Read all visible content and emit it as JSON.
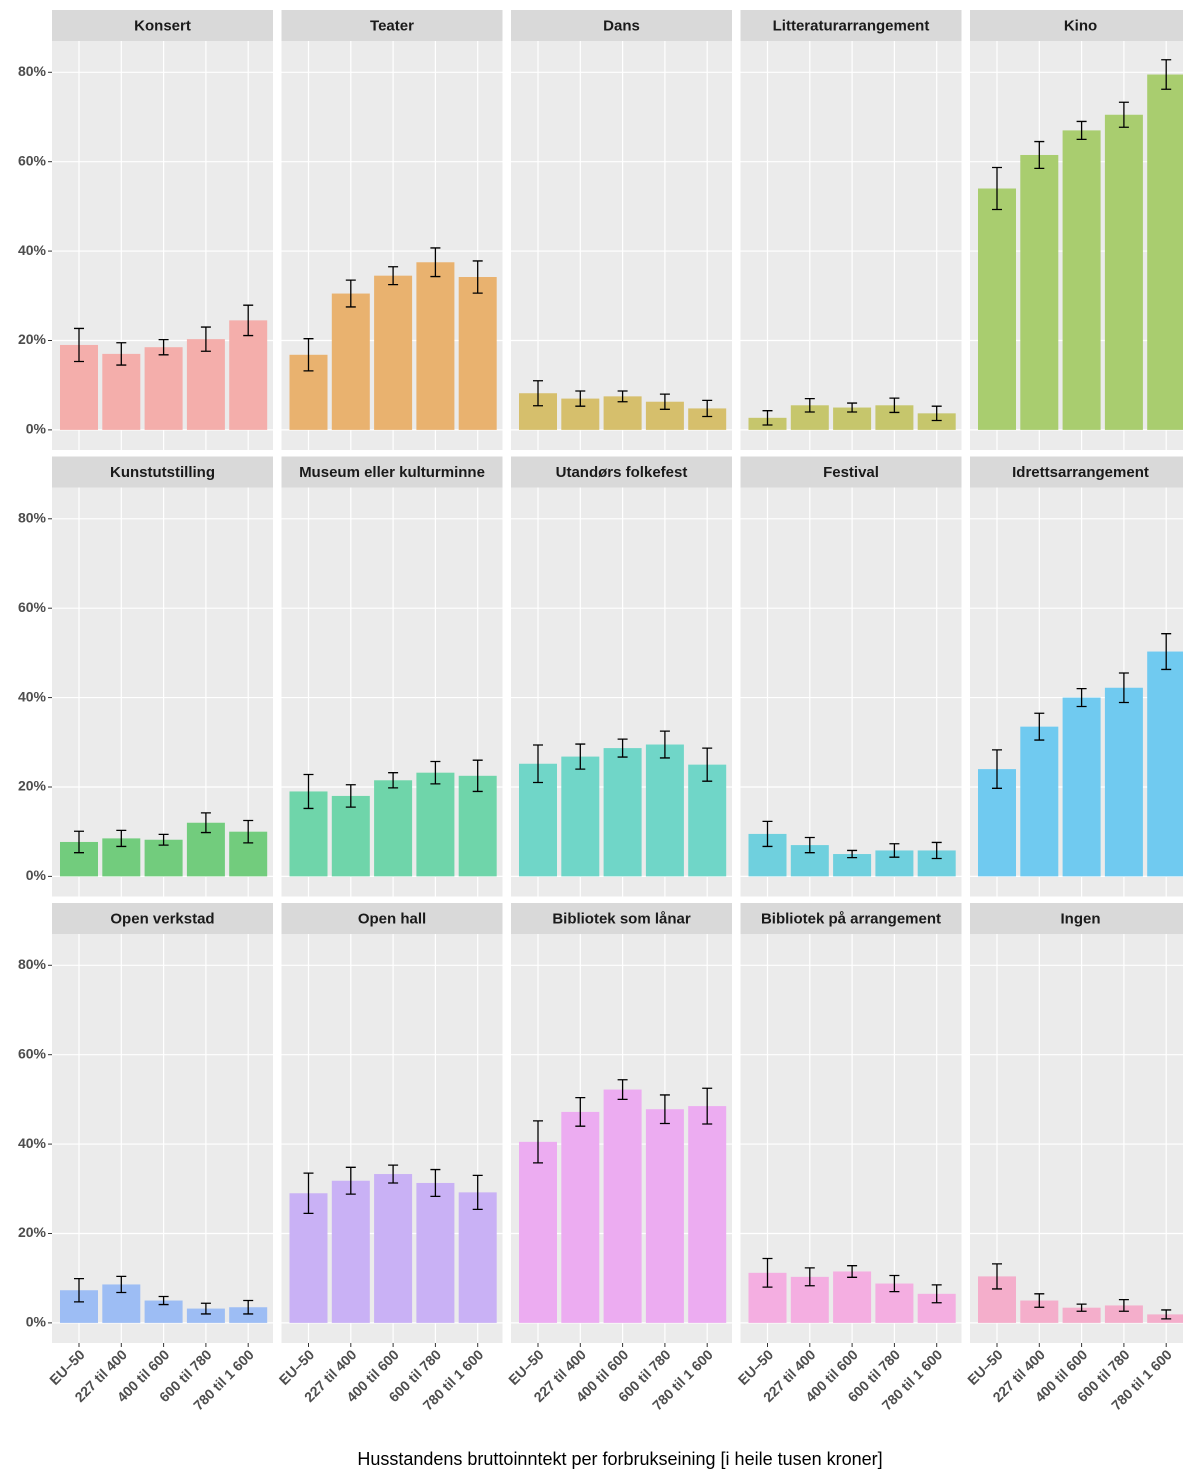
{
  "chart_data": {
    "type": "bar",
    "x_label": "Husstandens bruttoinntekt per forbrukseining [i heile tusen kroner]",
    "categories": [
      "EU–50",
      "227 til 400",
      "400 til 600",
      "600 til 780",
      "780 til 1 600"
    ],
    "ylim": [
      -4.5,
      87
    ],
    "yticks": [
      {
        "value": 0,
        "label": "0%"
      },
      {
        "value": 20,
        "label": "20%"
      },
      {
        "value": 40,
        "label": "40%"
      },
      {
        "value": 60,
        "label": "60%"
      },
      {
        "value": 80,
        "label": "80%"
      }
    ],
    "grid": true,
    "facets": [
      {
        "title": "Konsert",
        "color": "#f4aeab",
        "values": [
          19,
          17,
          18.5,
          20.3,
          24.5
        ],
        "errors": [
          3.7,
          2.5,
          1.7,
          2.7,
          3.4
        ]
      },
      {
        "title": "Teater",
        "color": "#e9b26f",
        "values": [
          16.8,
          30.5,
          34.5,
          37.5,
          34.2
        ],
        "errors": [
          3.6,
          3,
          2,
          3.2,
          3.6
        ]
      },
      {
        "title": "Dans",
        "color": "#d6bf6c",
        "values": [
          8.2,
          7,
          7.5,
          6.3,
          4.8
        ],
        "errors": [
          2.8,
          1.7,
          1.2,
          1.7,
          1.8
        ]
      },
      {
        "title": "Litteraturarrangement",
        "color": "#c6c66c",
        "values": [
          2.7,
          5.5,
          5,
          5.5,
          3.7
        ],
        "errors": [
          1.6,
          1.5,
          1,
          1.6,
          1.6
        ]
      },
      {
        "title": "Kino",
        "color": "#a9cd6f",
        "values": [
          54,
          61.5,
          67,
          70.5,
          79.5
        ],
        "errors": [
          4.7,
          3,
          2,
          2.8,
          3.3
        ]
      },
      {
        "title": "Kunstutstilling",
        "color": "#72cc7d",
        "values": [
          7.7,
          8.5,
          8.2,
          12,
          10
        ],
        "errors": [
          2.4,
          1.8,
          1.2,
          2.2,
          2.5
        ]
      },
      {
        "title": "Museum eller kulturminne",
        "color": "#6fd5aa",
        "values": [
          19,
          18,
          21.5,
          23.2,
          22.5
        ],
        "errors": [
          3.8,
          2.5,
          1.7,
          2.5,
          3.5
        ]
      },
      {
        "title": "Utandørs folkefest",
        "color": "#70d6c8",
        "values": [
          25.2,
          26.8,
          28.7,
          29.5,
          25
        ],
        "errors": [
          4.2,
          2.8,
          2,
          3,
          3.7
        ]
      },
      {
        "title": "Festival",
        "color": "#6fd0de",
        "values": [
          9.5,
          7,
          5,
          5.8,
          5.8
        ],
        "errors": [
          2.8,
          1.7,
          0.8,
          1.5,
          1.8
        ]
      },
      {
        "title": "Idrettsarrangement",
        "color": "#70caf0",
        "values": [
          24,
          33.5,
          40,
          42.2,
          50.3
        ],
        "errors": [
          4.3,
          3,
          2,
          3.3,
          4
        ]
      },
      {
        "title": "Open verkstad",
        "color": "#9dbdf4",
        "values": [
          7.3,
          8.6,
          5,
          3.2,
          3.5
        ],
        "errors": [
          2.6,
          1.8,
          0.9,
          1.2,
          1.5
        ]
      },
      {
        "title": "Open hall",
        "color": "#c9b1f5",
        "values": [
          29,
          31.8,
          33.3,
          31.3,
          29.2
        ],
        "errors": [
          4.5,
          3,
          2,
          3,
          3.8
        ]
      },
      {
        "title": "Bibliotek som lånar",
        "color": "#ecacf1",
        "values": [
          40.5,
          47.2,
          52.2,
          47.8,
          48.5
        ],
        "errors": [
          4.7,
          3.2,
          2.2,
          3.2,
          4
        ]
      },
      {
        "title": "Bibliotek på arrangement",
        "color": "#f4aee1",
        "values": [
          11.2,
          10.3,
          11.5,
          8.8,
          6.5
        ],
        "errors": [
          3.2,
          2,
          1.3,
          1.8,
          2
        ]
      },
      {
        "title": "Ingen",
        "color": "#f4aecb",
        "values": [
          10.4,
          5,
          3.4,
          3.9,
          1.9
        ],
        "errors": [
          2.8,
          1.5,
          0.8,
          1.3,
          1
        ]
      }
    ]
  }
}
